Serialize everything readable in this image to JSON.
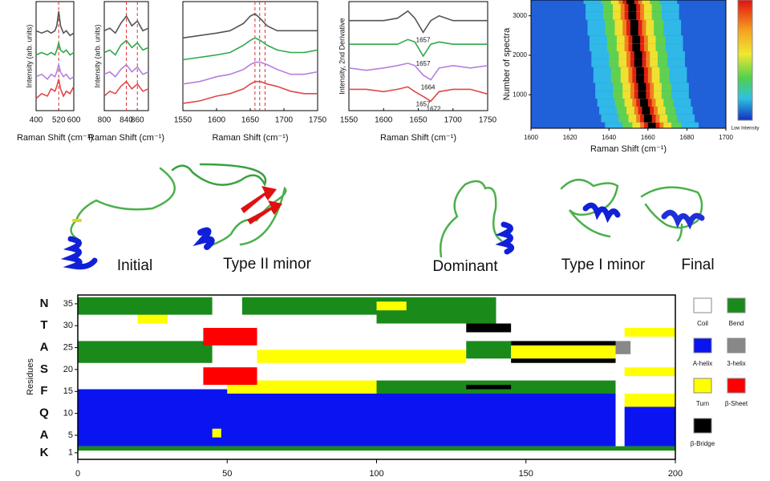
{
  "chart_data": [
    {
      "type": "spectra",
      "xlabel": "Raman Shift (cm⁻¹)",
      "ylabel": "Intensity (arb. units)",
      "x": [
        400,
        430,
        460,
        480,
        500,
        510,
        520,
        530,
        545,
        560,
        580,
        600
      ],
      "xlim": [
        400,
        600
      ],
      "xticks": [
        400,
        520,
        600
      ],
      "ylim": [
        0,
        4.5
      ],
      "markers": [
        520
      ],
      "series": [
        {
          "color": "#555555",
          "values": [
            3.3,
            3.2,
            3.3,
            3.2,
            3.3,
            3.5,
            4.1,
            3.5,
            3.2,
            3.3,
            3.1,
            3.2
          ]
        },
        {
          "color": "#2ea84a",
          "values": [
            2.3,
            2.4,
            2.3,
            2.4,
            2.3,
            2.5,
            2.8,
            2.5,
            2.4,
            2.5,
            2.3,
            2.4
          ]
        },
        {
          "color": "#b57fe0",
          "values": [
            1.4,
            1.5,
            1.3,
            1.5,
            1.4,
            1.6,
            1.9,
            1.6,
            1.4,
            1.5,
            1.3,
            1.4
          ]
        },
        {
          "color": "#e04848",
          "values": [
            0.5,
            0.7,
            0.6,
            0.9,
            0.8,
            1.0,
            1.3,
            0.9,
            0.6,
            0.8,
            0.7,
            1.0
          ]
        }
      ]
    },
    {
      "type": "spectra",
      "xlabel": "Raman Shift (cm⁻¹)",
      "ylabel": "Intensity (arb. units)",
      "x": [
        800,
        810,
        820,
        830,
        840,
        850,
        860,
        870,
        880
      ],
      "xlim": [
        800,
        880
      ],
      "xticks": [
        800,
        840,
        860
      ],
      "ylim": [
        0,
        4.5
      ],
      "markers": [
        840,
        860
      ],
      "series": [
        {
          "color": "#555555",
          "values": [
            3.3,
            3.4,
            3.2,
            3.6,
            3.9,
            3.5,
            3.7,
            3.3,
            3.4
          ]
        },
        {
          "color": "#2ea84a",
          "values": [
            2.4,
            2.5,
            2.3,
            2.7,
            2.9,
            2.6,
            2.8,
            2.5,
            2.6
          ]
        },
        {
          "color": "#b57fe0",
          "values": [
            1.5,
            1.6,
            1.4,
            1.7,
            1.9,
            1.6,
            1.8,
            1.5,
            1.6
          ]
        },
        {
          "color": "#e04848",
          "values": [
            0.6,
            0.8,
            0.7,
            1.0,
            1.2,
            0.9,
            1.1,
            0.8,
            0.9
          ]
        }
      ]
    },
    {
      "type": "spectra",
      "xlabel": "Raman Shift (cm⁻¹)",
      "x": [
        1550,
        1575,
        1600,
        1620,
        1640,
        1650,
        1657,
        1665,
        1675,
        1690,
        1710,
        1730,
        1750
      ],
      "xlim": [
        1550,
        1750
      ],
      "xticks": [
        1550,
        1600,
        1650,
        1700,
        1750
      ],
      "ylim": [
        0,
        4.5
      ],
      "markers": [
        1657,
        1664,
        1672
      ],
      "series": [
        {
          "color": "#555555",
          "values": [
            3.0,
            3.1,
            3.2,
            3.3,
            3.6,
            3.9,
            4.0,
            3.8,
            3.5,
            3.3,
            3.3,
            3.3,
            3.3
          ]
        },
        {
          "color": "#2ea84a",
          "values": [
            2.1,
            2.2,
            2.3,
            2.4,
            2.7,
            2.9,
            3.0,
            2.9,
            2.7,
            2.5,
            2.4,
            2.4,
            2.5
          ]
        },
        {
          "color": "#b57fe0",
          "values": [
            1.1,
            1.2,
            1.4,
            1.5,
            1.7,
            1.9,
            2.0,
            2.0,
            1.9,
            1.7,
            1.5,
            1.5,
            1.6
          ]
        },
        {
          "color": "#e04848",
          "values": [
            0.3,
            0.4,
            0.6,
            0.7,
            0.9,
            1.1,
            1.2,
            1.2,
            1.1,
            1.0,
            0.8,
            0.7,
            0.7
          ]
        }
      ]
    },
    {
      "type": "spectra",
      "xlabel": "Raman Shift (cm⁻¹)",
      "ylabel": "Intensity, 2nd Derivative",
      "x": [
        1550,
        1575,
        1600,
        1620,
        1635,
        1645,
        1657,
        1668,
        1680,
        1700,
        1725,
        1750
      ],
      "xlim": [
        1550,
        1750
      ],
      "xticks": [
        1550,
        1600,
        1650,
        1700,
        1750
      ],
      "ylim": [
        0,
        4.6
      ],
      "series": [
        {
          "color": "#555555",
          "values": [
            3.8,
            3.8,
            3.8,
            3.9,
            4.2,
            3.9,
            3.3,
            3.8,
            4.0,
            3.8,
            3.8,
            3.8
          ],
          "labels": [
            1657
          ]
        },
        {
          "color": "#2ea84a",
          "values": [
            2.8,
            2.8,
            2.8,
            2.8,
            3.0,
            2.9,
            2.3,
            2.8,
            2.9,
            2.8,
            2.8,
            2.8
          ],
          "labels": [
            1657
          ]
        },
        {
          "color": "#b57fe0",
          "values": [
            1.8,
            1.7,
            1.8,
            1.9,
            2.0,
            1.9,
            1.5,
            1.3,
            1.8,
            1.9,
            1.8,
            1.9
          ],
          "labels": [
            1664
          ]
        },
        {
          "color": "#e04848",
          "values": [
            0.9,
            0.9,
            0.8,
            0.9,
            1.0,
            0.8,
            0.6,
            0.4,
            0.8,
            0.9,
            0.9,
            0.7
          ],
          "labels": [
            1657,
            1672
          ]
        }
      ]
    },
    {
      "type": "heatmap",
      "xlabel": "Raman Shift (cm⁻¹)",
      "ylabel": "Number of spectra",
      "colorbar_label": "Low Intensity",
      "xlim": [
        1600,
        1700
      ],
      "xticks": [
        1600,
        1620,
        1640,
        1660,
        1680,
        1700
      ],
      "ylim": [
        150,
        3400
      ],
      "yticks": [
        1000,
        2000,
        3000
      ],
      "y": [
        200,
        400,
        600,
        800,
        1000,
        1200,
        1400,
        1600,
        1800,
        2000,
        2200,
        2400,
        2600,
        2800,
        3000,
        3200,
        3400
      ],
      "peak": [
        1662,
        1660,
        1659,
        1658,
        1657,
        1657,
        1656,
        1656,
        1655,
        1655,
        1654,
        1654,
        1653,
        1653,
        1652,
        1652,
        1651
      ]
    },
    {
      "type": "residue_map",
      "ylabel": "Residues",
      "xlim": [
        0,
        200
      ],
      "xticks": [
        0,
        50,
        100,
        150,
        200
      ],
      "ylim": [
        -0.5,
        37
      ],
      "yticks": [
        1,
        5,
        10,
        15,
        20,
        25,
        30,
        35
      ],
      "residue_letters": [
        {
          "value": 1,
          "label": "K",
          "color": "#e0201a"
        },
        {
          "value": 5,
          "label": "A",
          "color": "#2a7ab8"
        },
        {
          "value": 10,
          "label": "Q",
          "color": "#222222"
        },
        {
          "value": 15,
          "label": "F",
          "color": "#2a7ab8"
        },
        {
          "value": 20,
          "label": "S",
          "color": "#222222"
        },
        {
          "value": 25,
          "label": "A",
          "color": "#2a7ab8"
        },
        {
          "value": 30,
          "label": "T",
          "color": "#222222"
        },
        {
          "value": 35,
          "label": "N",
          "color": "#222222"
        }
      ],
      "legend": [
        {
          "name": "Coil",
          "color": "#ffffff"
        },
        {
          "name": "Bend",
          "color": "#1a8a1a"
        },
        {
          "name": "A-helix",
          "color": "#0a14f0"
        },
        {
          "name": "3-helix",
          "color": "#888888"
        },
        {
          "name": "Turn",
          "color": "#ffff00"
        },
        {
          "name": "β-Sheet",
          "color": "#ff0000"
        },
        {
          "name": "β-Bridge",
          "color": "#000000"
        }
      ],
      "blocks": [
        {
          "state": "Bend",
          "rows": [
            2,
            2
          ],
          "x": [
            0,
            200
          ]
        },
        {
          "state": "A-helix",
          "rows": [
            3,
            15
          ],
          "x": [
            0,
            180
          ]
        },
        {
          "state": "A-helix",
          "rows": [
            3,
            11
          ],
          "x": [
            183,
            200
          ]
        },
        {
          "state": "Turn",
          "rows": [
            5,
            6
          ],
          "x": [
            45,
            48
          ]
        },
        {
          "state": "Turn",
          "rows": [
            12,
            14
          ],
          "x": [
            183,
            200
          ]
        },
        {
          "state": "Bend",
          "rows": [
            15,
            17
          ],
          "x": [
            100,
            180
          ]
        },
        {
          "state": "Turn",
          "rows": [
            15,
            17
          ],
          "x": [
            50,
            100
          ]
        },
        {
          "state": "β-Bridge",
          "rows": [
            16,
            16
          ],
          "x": [
            130,
            145
          ]
        },
        {
          "state": "β-Sheet",
          "rows": [
            17,
            20
          ],
          "x": [
            42,
            60
          ]
        },
        {
          "state": "Turn",
          "rows": [
            19,
            20
          ],
          "x": [
            183,
            200
          ]
        },
        {
          "state": "Bend",
          "rows": [
            22,
            26
          ],
          "x": [
            0,
            45
          ]
        },
        {
          "state": "Turn",
          "rows": [
            22,
            24
          ],
          "x": [
            60,
            130
          ]
        },
        {
          "state": "Bend",
          "rows": [
            23,
            26
          ],
          "x": [
            130,
            145
          ]
        },
        {
          "state": "Turn",
          "rows": [
            23,
            25
          ],
          "x": [
            145,
            180
          ]
        },
        {
          "state": "β-Bridge",
          "rows": [
            22,
            22
          ],
          "x": [
            145,
            180
          ]
        },
        {
          "state": "β-Bridge",
          "rows": [
            26,
            26
          ],
          "x": [
            145,
            180
          ]
        },
        {
          "state": "3-helix",
          "rows": [
            24,
            26
          ],
          "x": [
            180,
            185
          ]
        },
        {
          "state": "β-Sheet",
          "rows": [
            26,
            29
          ],
          "x": [
            42,
            60
          ]
        },
        {
          "state": "Turn",
          "rows": [
            28,
            29
          ],
          "x": [
            183,
            200
          ]
        },
        {
          "state": "β-Bridge",
          "rows": [
            29,
            30
          ],
          "x": [
            130,
            145
          ]
        },
        {
          "state": "Turn",
          "rows": [
            31,
            34
          ],
          "x": [
            20,
            30
          ]
        },
        {
          "state": "Bend",
          "rows": [
            31,
            36
          ],
          "x": [
            100,
            140
          ]
        },
        {
          "state": "Bend",
          "rows": [
            33,
            36
          ],
          "x": [
            0,
            45
          ]
        },
        {
          "state": "Bend",
          "rows": [
            33,
            36
          ],
          "x": [
            55,
            100
          ]
        },
        {
          "state": "Turn",
          "rows": [
            34,
            35
          ],
          "x": [
            100,
            110
          ]
        }
      ]
    }
  ],
  "structures": [
    "Initial",
    "Type II minor",
    "Dominant",
    "Type I minor",
    "Final"
  ]
}
